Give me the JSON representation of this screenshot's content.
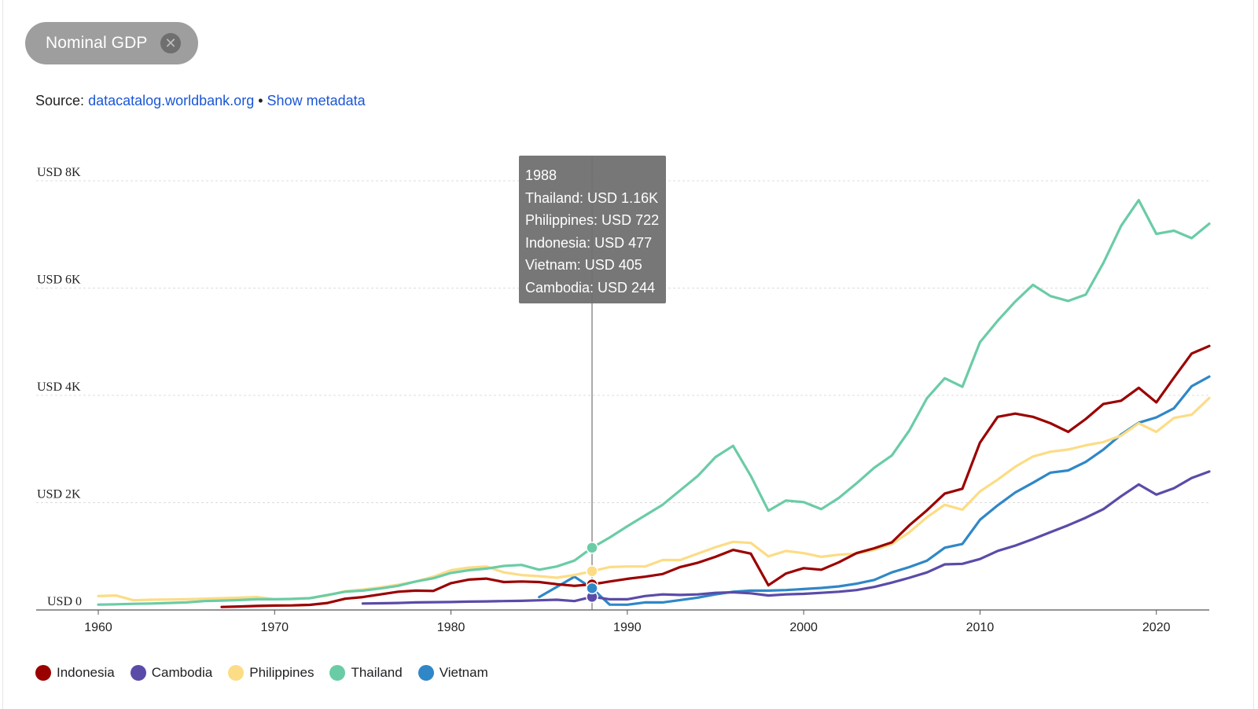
{
  "chip": {
    "label": "Nominal GDP",
    "close_icon": "close-icon"
  },
  "source": {
    "prefix": "Source:",
    "link": "datacatalog.worldbank.org",
    "separator": "•",
    "metadata_link": "Show metadata"
  },
  "tooltip": {
    "year": "1988",
    "lines": [
      "Thailand: USD 1.16K",
      "Philippines: USD 722",
      "Indonesia: USD 477",
      "Vietnam: USD 405",
      "Cambodia: USD 244"
    ]
  },
  "chart_data": {
    "type": "line",
    "title": "Nominal GDP",
    "xlabel": "",
    "ylabel": "",
    "xlim": [
      1960,
      2023
    ],
    "ylim": [
      0,
      8000
    ],
    "y_ticks": [
      {
        "value": 0,
        "label": "USD 0"
      },
      {
        "value": 2000,
        "label": "USD 2K"
      },
      {
        "value": 4000,
        "label": "USD 4K"
      },
      {
        "value": 6000,
        "label": "USD 6K"
      },
      {
        "value": 8000,
        "label": "USD 8K"
      }
    ],
    "x_ticks": [
      1960,
      1970,
      1980,
      1990,
      2000,
      2010,
      2020
    ],
    "grid": "horizontal-dashed",
    "highlight_year": 1988,
    "legend_position": "bottom-left",
    "series": [
      {
        "name": "Indonesia",
        "color": "#9b0000",
        "points": [
          [
            1967,
            55
          ],
          [
            1968,
            65
          ],
          [
            1969,
            75
          ],
          [
            1970,
            82
          ],
          [
            1971,
            85
          ],
          [
            1972,
            95
          ],
          [
            1973,
            130
          ],
          [
            1974,
            210
          ],
          [
            1975,
            240
          ],
          [
            1976,
            290
          ],
          [
            1977,
            340
          ],
          [
            1978,
            360
          ],
          [
            1979,
            355
          ],
          [
            1980,
            500
          ],
          [
            1981,
            565
          ],
          [
            1982,
            585
          ],
          [
            1983,
            520
          ],
          [
            1984,
            530
          ],
          [
            1985,
            520
          ],
          [
            1986,
            480
          ],
          [
            1987,
            450
          ],
          [
            1988,
            477
          ],
          [
            1989,
            530
          ],
          [
            1990,
            580
          ],
          [
            1991,
            620
          ],
          [
            1992,
            670
          ],
          [
            1993,
            800
          ],
          [
            1994,
            880
          ],
          [
            1995,
            990
          ],
          [
            1996,
            1120
          ],
          [
            1997,
            1050
          ],
          [
            1998,
            460
          ],
          [
            1999,
            680
          ],
          [
            2000,
            780
          ],
          [
            2001,
            750
          ],
          [
            2002,
            890
          ],
          [
            2003,
            1060
          ],
          [
            2004,
            1150
          ],
          [
            2005,
            1260
          ],
          [
            2006,
            1580
          ],
          [
            2007,
            1860
          ],
          [
            2008,
            2170
          ],
          [
            2009,
            2260
          ],
          [
            2010,
            3120
          ],
          [
            2011,
            3600
          ],
          [
            2012,
            3660
          ],
          [
            2013,
            3600
          ],
          [
            2014,
            3480
          ],
          [
            2015,
            3320
          ],
          [
            2016,
            3560
          ],
          [
            2017,
            3840
          ],
          [
            2018,
            3900
          ],
          [
            2019,
            4140
          ],
          [
            2020,
            3870
          ],
          [
            2021,
            4330
          ],
          [
            2022,
            4780
          ],
          [
            2023,
            4920
          ]
        ]
      },
      {
        "name": "Cambodia",
        "color": "#5b4ba8",
        "points": [
          [
            1975,
            120
          ],
          [
            1976,
            125
          ],
          [
            1977,
            130
          ],
          [
            1978,
            140
          ],
          [
            1979,
            145
          ],
          [
            1980,
            148
          ],
          [
            1981,
            155
          ],
          [
            1982,
            160
          ],
          [
            1983,
            165
          ],
          [
            1984,
            170
          ],
          [
            1985,
            180
          ],
          [
            1986,
            190
          ],
          [
            1987,
            165
          ],
          [
            1988,
            244
          ],
          [
            1989,
            200
          ],
          [
            1990,
            200
          ],
          [
            1991,
            260
          ],
          [
            1992,
            290
          ],
          [
            1993,
            280
          ],
          [
            1994,
            290
          ],
          [
            1995,
            320
          ],
          [
            1996,
            330
          ],
          [
            1997,
            310
          ],
          [
            1998,
            270
          ],
          [
            1999,
            290
          ],
          [
            2000,
            300
          ],
          [
            2001,
            320
          ],
          [
            2002,
            340
          ],
          [
            2003,
            370
          ],
          [
            2004,
            430
          ],
          [
            2005,
            510
          ],
          [
            2006,
            600
          ],
          [
            2007,
            700
          ],
          [
            2008,
            850
          ],
          [
            2009,
            860
          ],
          [
            2010,
            950
          ],
          [
            2011,
            1100
          ],
          [
            2012,
            1200
          ],
          [
            2013,
            1320
          ],
          [
            2014,
            1450
          ],
          [
            2015,
            1580
          ],
          [
            2016,
            1720
          ],
          [
            2017,
            1880
          ],
          [
            2018,
            2120
          ],
          [
            2019,
            2340
          ],
          [
            2020,
            2150
          ],
          [
            2021,
            2270
          ],
          [
            2022,
            2460
          ],
          [
            2023,
            2580
          ]
        ]
      },
      {
        "name": "Philippines",
        "color": "#fcdc85",
        "points": [
          [
            1960,
            260
          ],
          [
            1961,
            270
          ],
          [
            1962,
            180
          ],
          [
            1963,
            190
          ],
          [
            1964,
            195
          ],
          [
            1965,
            200
          ],
          [
            1966,
            210
          ],
          [
            1967,
            220
          ],
          [
            1968,
            230
          ],
          [
            1969,
            240
          ],
          [
            1970,
            200
          ],
          [
            1971,
            210
          ],
          [
            1972,
            220
          ],
          [
            1973,
            270
          ],
          [
            1974,
            350
          ],
          [
            1975,
            380
          ],
          [
            1976,
            420
          ],
          [
            1977,
            470
          ],
          [
            1978,
            530
          ],
          [
            1979,
            620
          ],
          [
            1980,
            740
          ],
          [
            1981,
            790
          ],
          [
            1982,
            810
          ],
          [
            1983,
            700
          ],
          [
            1984,
            650
          ],
          [
            1985,
            630
          ],
          [
            1986,
            600
          ],
          [
            1987,
            650
          ],
          [
            1988,
            722
          ],
          [
            1989,
            800
          ],
          [
            1990,
            810
          ],
          [
            1991,
            810
          ],
          [
            1992,
            930
          ],
          [
            1993,
            930
          ],
          [
            1994,
            1050
          ],
          [
            1995,
            1170
          ],
          [
            1996,
            1270
          ],
          [
            1997,
            1250
          ],
          [
            1998,
            1000
          ],
          [
            1999,
            1100
          ],
          [
            2000,
            1060
          ],
          [
            2001,
            990
          ],
          [
            2002,
            1030
          ],
          [
            2003,
            1050
          ],
          [
            2004,
            1120
          ],
          [
            2005,
            1230
          ],
          [
            2006,
            1450
          ],
          [
            2007,
            1730
          ],
          [
            2008,
            1960
          ],
          [
            2009,
            1870
          ],
          [
            2010,
            2210
          ],
          [
            2011,
            2430
          ],
          [
            2012,
            2670
          ],
          [
            2013,
            2860
          ],
          [
            2014,
            2950
          ],
          [
            2015,
            2990
          ],
          [
            2016,
            3070
          ],
          [
            2017,
            3130
          ],
          [
            2018,
            3250
          ],
          [
            2019,
            3480
          ],
          [
            2020,
            3320
          ],
          [
            2021,
            3580
          ],
          [
            2022,
            3640
          ],
          [
            2023,
            3950
          ]
        ]
      },
      {
        "name": "Thailand",
        "color": "#6acca6",
        "points": [
          [
            1960,
            100
          ],
          [
            1961,
            105
          ],
          [
            1962,
            115
          ],
          [
            1963,
            120
          ],
          [
            1964,
            130
          ],
          [
            1965,
            140
          ],
          [
            1966,
            165
          ],
          [
            1967,
            175
          ],
          [
            1968,
            185
          ],
          [
            1969,
            200
          ],
          [
            1970,
            200
          ],
          [
            1971,
            205
          ],
          [
            1972,
            220
          ],
          [
            1973,
            280
          ],
          [
            1974,
            340
          ],
          [
            1975,
            360
          ],
          [
            1976,
            400
          ],
          [
            1977,
            450
          ],
          [
            1978,
            530
          ],
          [
            1979,
            590
          ],
          [
            1980,
            690
          ],
          [
            1981,
            740
          ],
          [
            1982,
            770
          ],
          [
            1983,
            820
          ],
          [
            1984,
            840
          ],
          [
            1985,
            750
          ],
          [
            1986,
            810
          ],
          [
            1987,
            920
          ],
          [
            1988,
            1160
          ],
          [
            1989,
            1350
          ],
          [
            1990,
            1560
          ],
          [
            1991,
            1760
          ],
          [
            1992,
            1960
          ],
          [
            1993,
            2230
          ],
          [
            1994,
            2500
          ],
          [
            1995,
            2850
          ],
          [
            1996,
            3060
          ],
          [
            1997,
            2500
          ],
          [
            1998,
            1850
          ],
          [
            1999,
            2040
          ],
          [
            2000,
            2010
          ],
          [
            2001,
            1880
          ],
          [
            2002,
            2090
          ],
          [
            2003,
            2360
          ],
          [
            2004,
            2650
          ],
          [
            2005,
            2880
          ],
          [
            2006,
            3350
          ],
          [
            2007,
            3950
          ],
          [
            2008,
            4320
          ],
          [
            2009,
            4160
          ],
          [
            2010,
            4990
          ],
          [
            2011,
            5390
          ],
          [
            2012,
            5750
          ],
          [
            2013,
            6060
          ],
          [
            2014,
            5850
          ],
          [
            2015,
            5760
          ],
          [
            2016,
            5880
          ],
          [
            2017,
            6470
          ],
          [
            2018,
            7160
          ],
          [
            2019,
            7640
          ],
          [
            2020,
            7010
          ],
          [
            2021,
            7070
          ],
          [
            2022,
            6930
          ],
          [
            2023,
            7200
          ]
        ]
      },
      {
        "name": "Vietnam",
        "color": "#2f87c7",
        "points": [
          [
            1985,
            240
          ],
          [
            1986,
            430
          ],
          [
            1987,
            620
          ],
          [
            1988,
            405
          ],
          [
            1989,
            100
          ],
          [
            1990,
            98
          ],
          [
            1991,
            140
          ],
          [
            1992,
            140
          ],
          [
            1993,
            185
          ],
          [
            1994,
            230
          ],
          [
            1995,
            290
          ],
          [
            1996,
            340
          ],
          [
            1997,
            360
          ],
          [
            1998,
            360
          ],
          [
            1999,
            370
          ],
          [
            2000,
            390
          ],
          [
            2001,
            410
          ],
          [
            2002,
            440
          ],
          [
            2003,
            490
          ],
          [
            2004,
            560
          ],
          [
            2005,
            700
          ],
          [
            2006,
            800
          ],
          [
            2007,
            920
          ],
          [
            2008,
            1160
          ],
          [
            2009,
            1230
          ],
          [
            2010,
            1680
          ],
          [
            2011,
            1950
          ],
          [
            2012,
            2190
          ],
          [
            2013,
            2370
          ],
          [
            2014,
            2560
          ],
          [
            2015,
            2600
          ],
          [
            2016,
            2760
          ],
          [
            2017,
            2990
          ],
          [
            2018,
            3270
          ],
          [
            2019,
            3490
          ],
          [
            2020,
            3590
          ],
          [
            2021,
            3760
          ],
          [
            2022,
            4170
          ],
          [
            2023,
            4350
          ]
        ]
      }
    ]
  }
}
